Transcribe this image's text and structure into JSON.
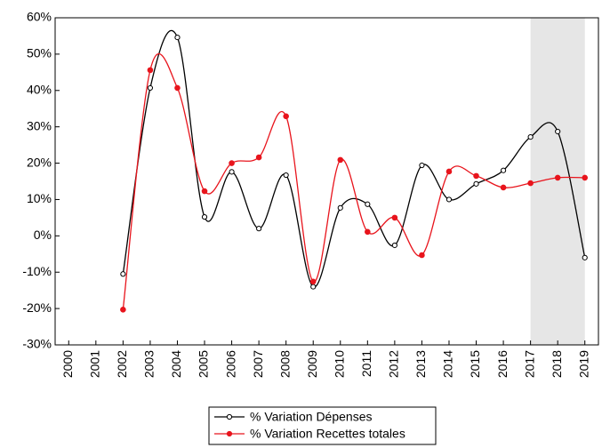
{
  "chart_data": {
    "type": "line",
    "categories": [
      "2000",
      "2001",
      "2002",
      "2003",
      "2004",
      "2005",
      "2006",
      "2007",
      "2008",
      "2009",
      "2010",
      "2011",
      "2012",
      "2013",
      "2014",
      "2015",
      "2016",
      "2017",
      "2018",
      "2019"
    ],
    "series": [
      {
        "name": "% Variation Dépenses",
        "color": "#000000",
        "marker": "hollow",
        "values": [
          null,
          null,
          -10.5,
          40.7,
          54.6,
          5.2,
          17.6,
          2,
          16.7,
          -14,
          7.7,
          8.7,
          -2.6,
          19.4,
          10,
          14.3,
          18,
          27.2,
          28.7,
          -6
        ]
      },
      {
        "name": "% Variation Recettes totales",
        "color": "#e8141c",
        "marker": "filled",
        "values": [
          null,
          null,
          -20.3,
          45.6,
          40.7,
          12.3,
          20,
          21.6,
          32.9,
          -12.6,
          20.9,
          1.1,
          5,
          -5.3,
          17.7,
          16.5,
          13.3,
          14.5,
          16,
          16
        ]
      }
    ],
    "ylim": [
      -30,
      60
    ],
    "yticks": [
      {
        "value": -30,
        "label": "-30%"
      },
      {
        "value": -20,
        "label": "-20%"
      },
      {
        "value": -10,
        "label": "-10%"
      },
      {
        "value": 0,
        "label": "0%"
      },
      {
        "value": 10,
        "label": "10%"
      },
      {
        "value": 20,
        "label": "20%"
      },
      {
        "value": 30,
        "label": "30%"
      },
      {
        "value": 40,
        "label": "40%"
      },
      {
        "value": 50,
        "label": "50%"
      },
      {
        "value": 60,
        "label": "60%"
      }
    ],
    "shade": {
      "from": "2017",
      "to": "2019",
      "color": "#e6e6e6"
    },
    "smooth": true,
    "legend": "bottom"
  }
}
